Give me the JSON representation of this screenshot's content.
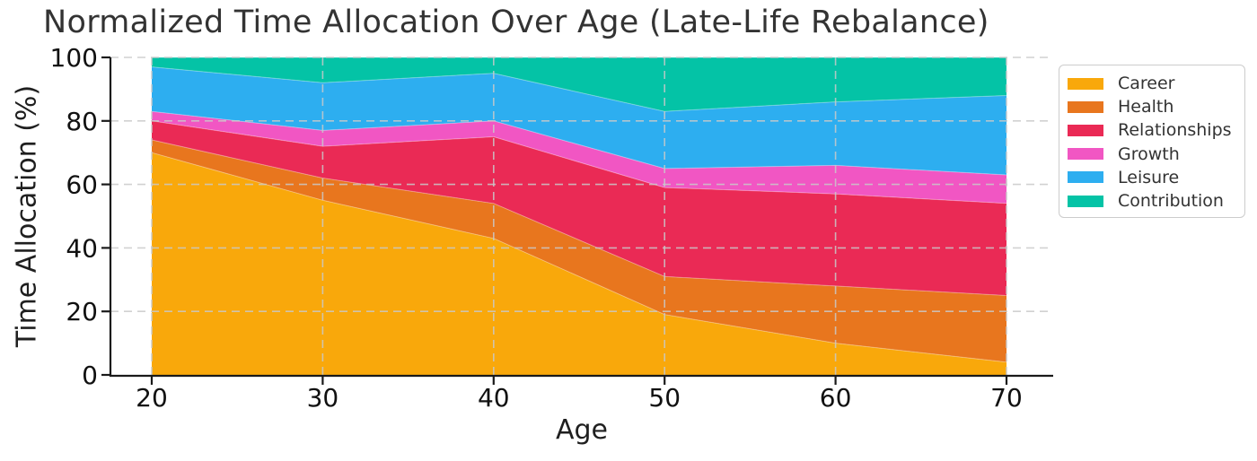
{
  "chart_data": {
    "type": "area",
    "stacked": true,
    "normalized": true,
    "units": "%",
    "title": "Normalized Time Allocation Over Age (Late-Life Rebalance)",
    "xlabel": "Age",
    "ylabel": "Time Allocation (%)",
    "x": [
      20,
      30,
      40,
      50,
      60,
      70
    ],
    "xticks": [
      20,
      30,
      40,
      50,
      60,
      70
    ],
    "yticks": [
      0,
      20,
      40,
      60,
      80,
      100
    ],
    "xlim": [
      17.5,
      72.5
    ],
    "ylim": [
      0,
      100
    ],
    "grid": true,
    "grid_style": "dashed",
    "legend_position": "outside-upper-right",
    "series": [
      {
        "name": "Career",
        "color": "#F9A80B",
        "values": [
          70,
          55,
          43,
          19,
          10,
          4
        ]
      },
      {
        "name": "Health",
        "color": "#E8761E",
        "values": [
          4,
          7,
          11,
          12,
          18,
          21
        ]
      },
      {
        "name": "Relationships",
        "color": "#EA2A55",
        "values": [
          6,
          10,
          21,
          28,
          29,
          29
        ]
      },
      {
        "name": "Growth",
        "color": "#F156C3",
        "values": [
          3,
          5,
          5,
          6,
          9,
          9
        ]
      },
      {
        "name": "Leisure",
        "color": "#2DAEF0",
        "values": [
          14,
          15,
          15,
          18,
          20,
          25
        ]
      },
      {
        "name": "Contribution",
        "color": "#04C3A6",
        "values": [
          3,
          8,
          5,
          17,
          14,
          12
        ]
      }
    ]
  },
  "palette": {
    "background": "#ffffff",
    "grid_color": "#C9C9C9",
    "axis_color": "#1A1A1A",
    "tick_label_color": "#111111",
    "title_color": "#333333",
    "legend_border_color": "#CCCCCC",
    "legend_text_color": "#333333"
  }
}
